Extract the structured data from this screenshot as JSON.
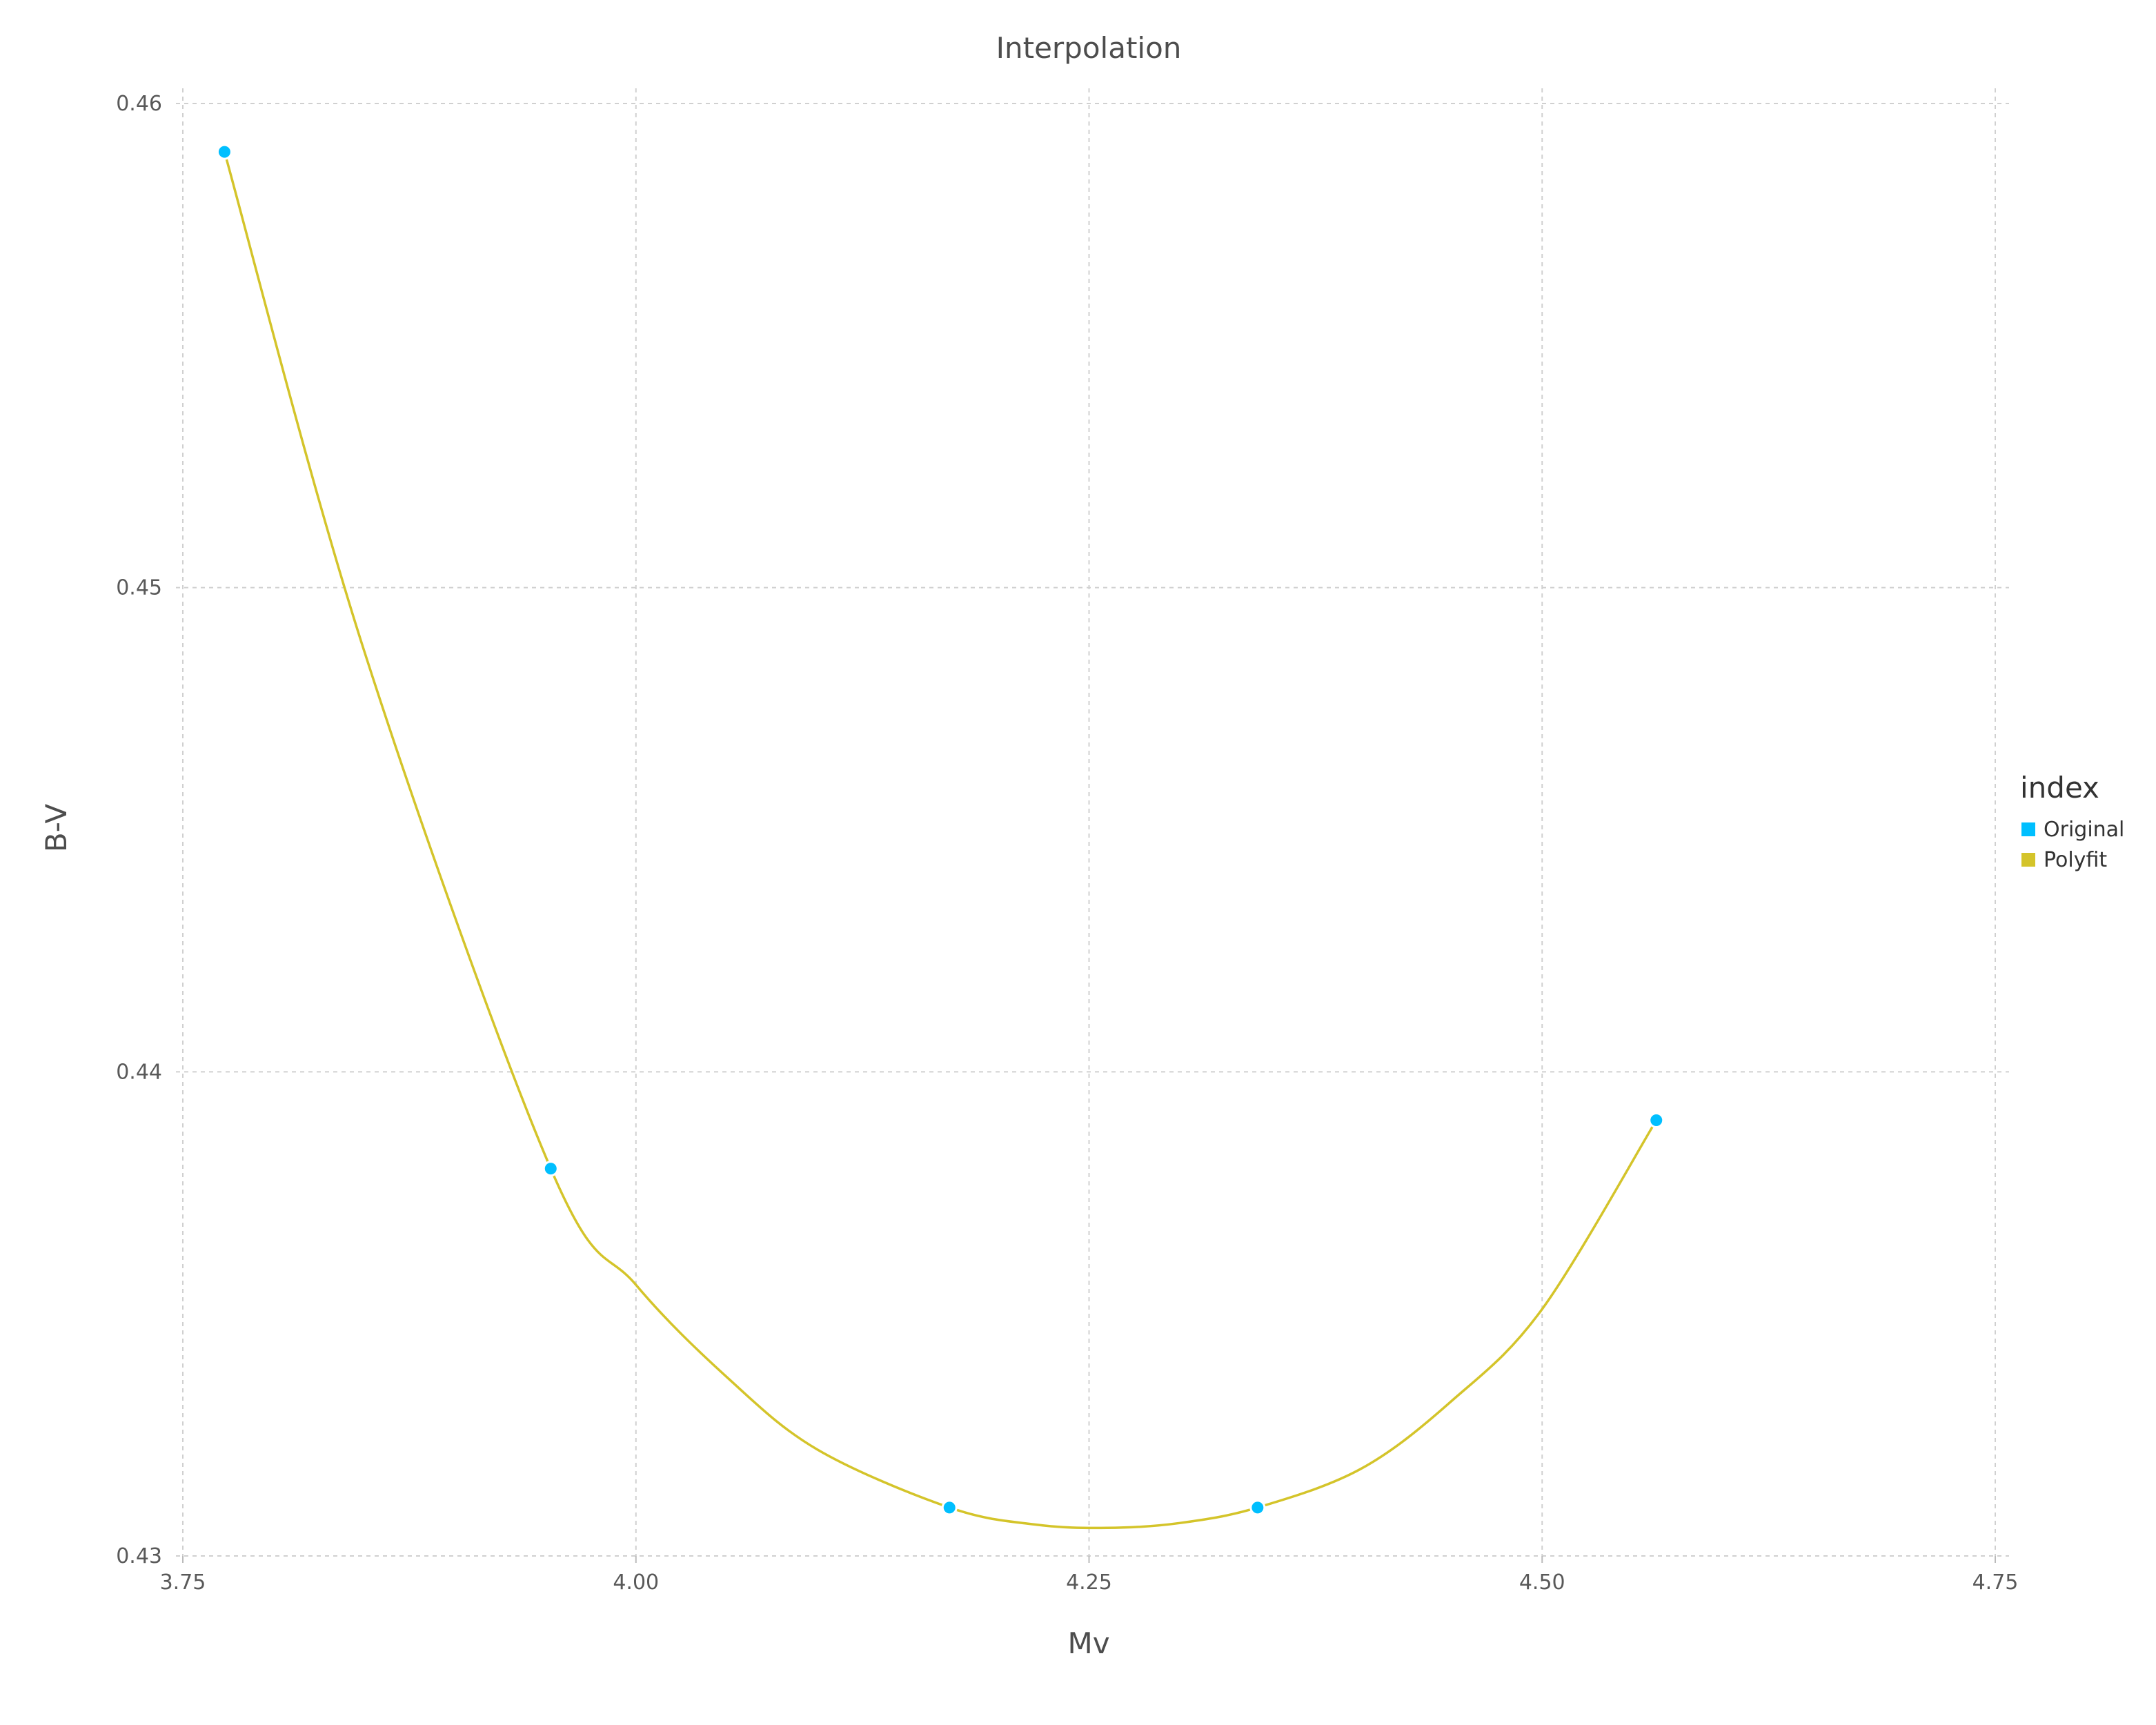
{
  "chart_data": {
    "type": "line",
    "title": "Interpolation",
    "xlabel": "Mv",
    "ylabel": "B-V",
    "xlim": [
      3.75,
      4.75
    ],
    "ylim": [
      0.43,
      0.46
    ],
    "x_ticks": [
      "3.75",
      "4.00",
      "4.25",
      "4.50",
      "4.75"
    ],
    "x_tick_values": [
      3.75,
      4.0,
      4.25,
      4.5,
      4.75
    ],
    "y_ticks": [
      "0.43",
      "0.44",
      "0.45",
      "0.46"
    ],
    "y_tick_values": [
      0.43,
      0.44,
      0.45,
      0.46
    ],
    "grid": true,
    "legend": {
      "title": "index",
      "position": "right"
    },
    "series": [
      {
        "name": "Original",
        "kind": "scatter",
        "color": "#00bfff",
        "x": [
          3.773,
          3.953,
          4.173,
          4.343,
          4.563
        ],
        "y": [
          0.459,
          0.438,
          0.431,
          0.431,
          0.439
        ]
      },
      {
        "name": "Polyfit",
        "kind": "line",
        "color": "#d4c42a",
        "x": [
          3.773,
          3.85,
          3.953,
          4.0,
          4.05,
          4.1,
          4.173,
          4.22,
          4.26,
          4.3,
          4.343,
          4.4,
          4.45,
          4.5,
          4.563
        ],
        "y": [
          0.459,
          0.4487,
          0.438,
          0.4356,
          0.4337,
          0.4322,
          0.431,
          0.43065,
          0.43058,
          0.43068,
          0.431,
          0.4318,
          0.4332,
          0.4351,
          0.439
        ]
      }
    ]
  }
}
